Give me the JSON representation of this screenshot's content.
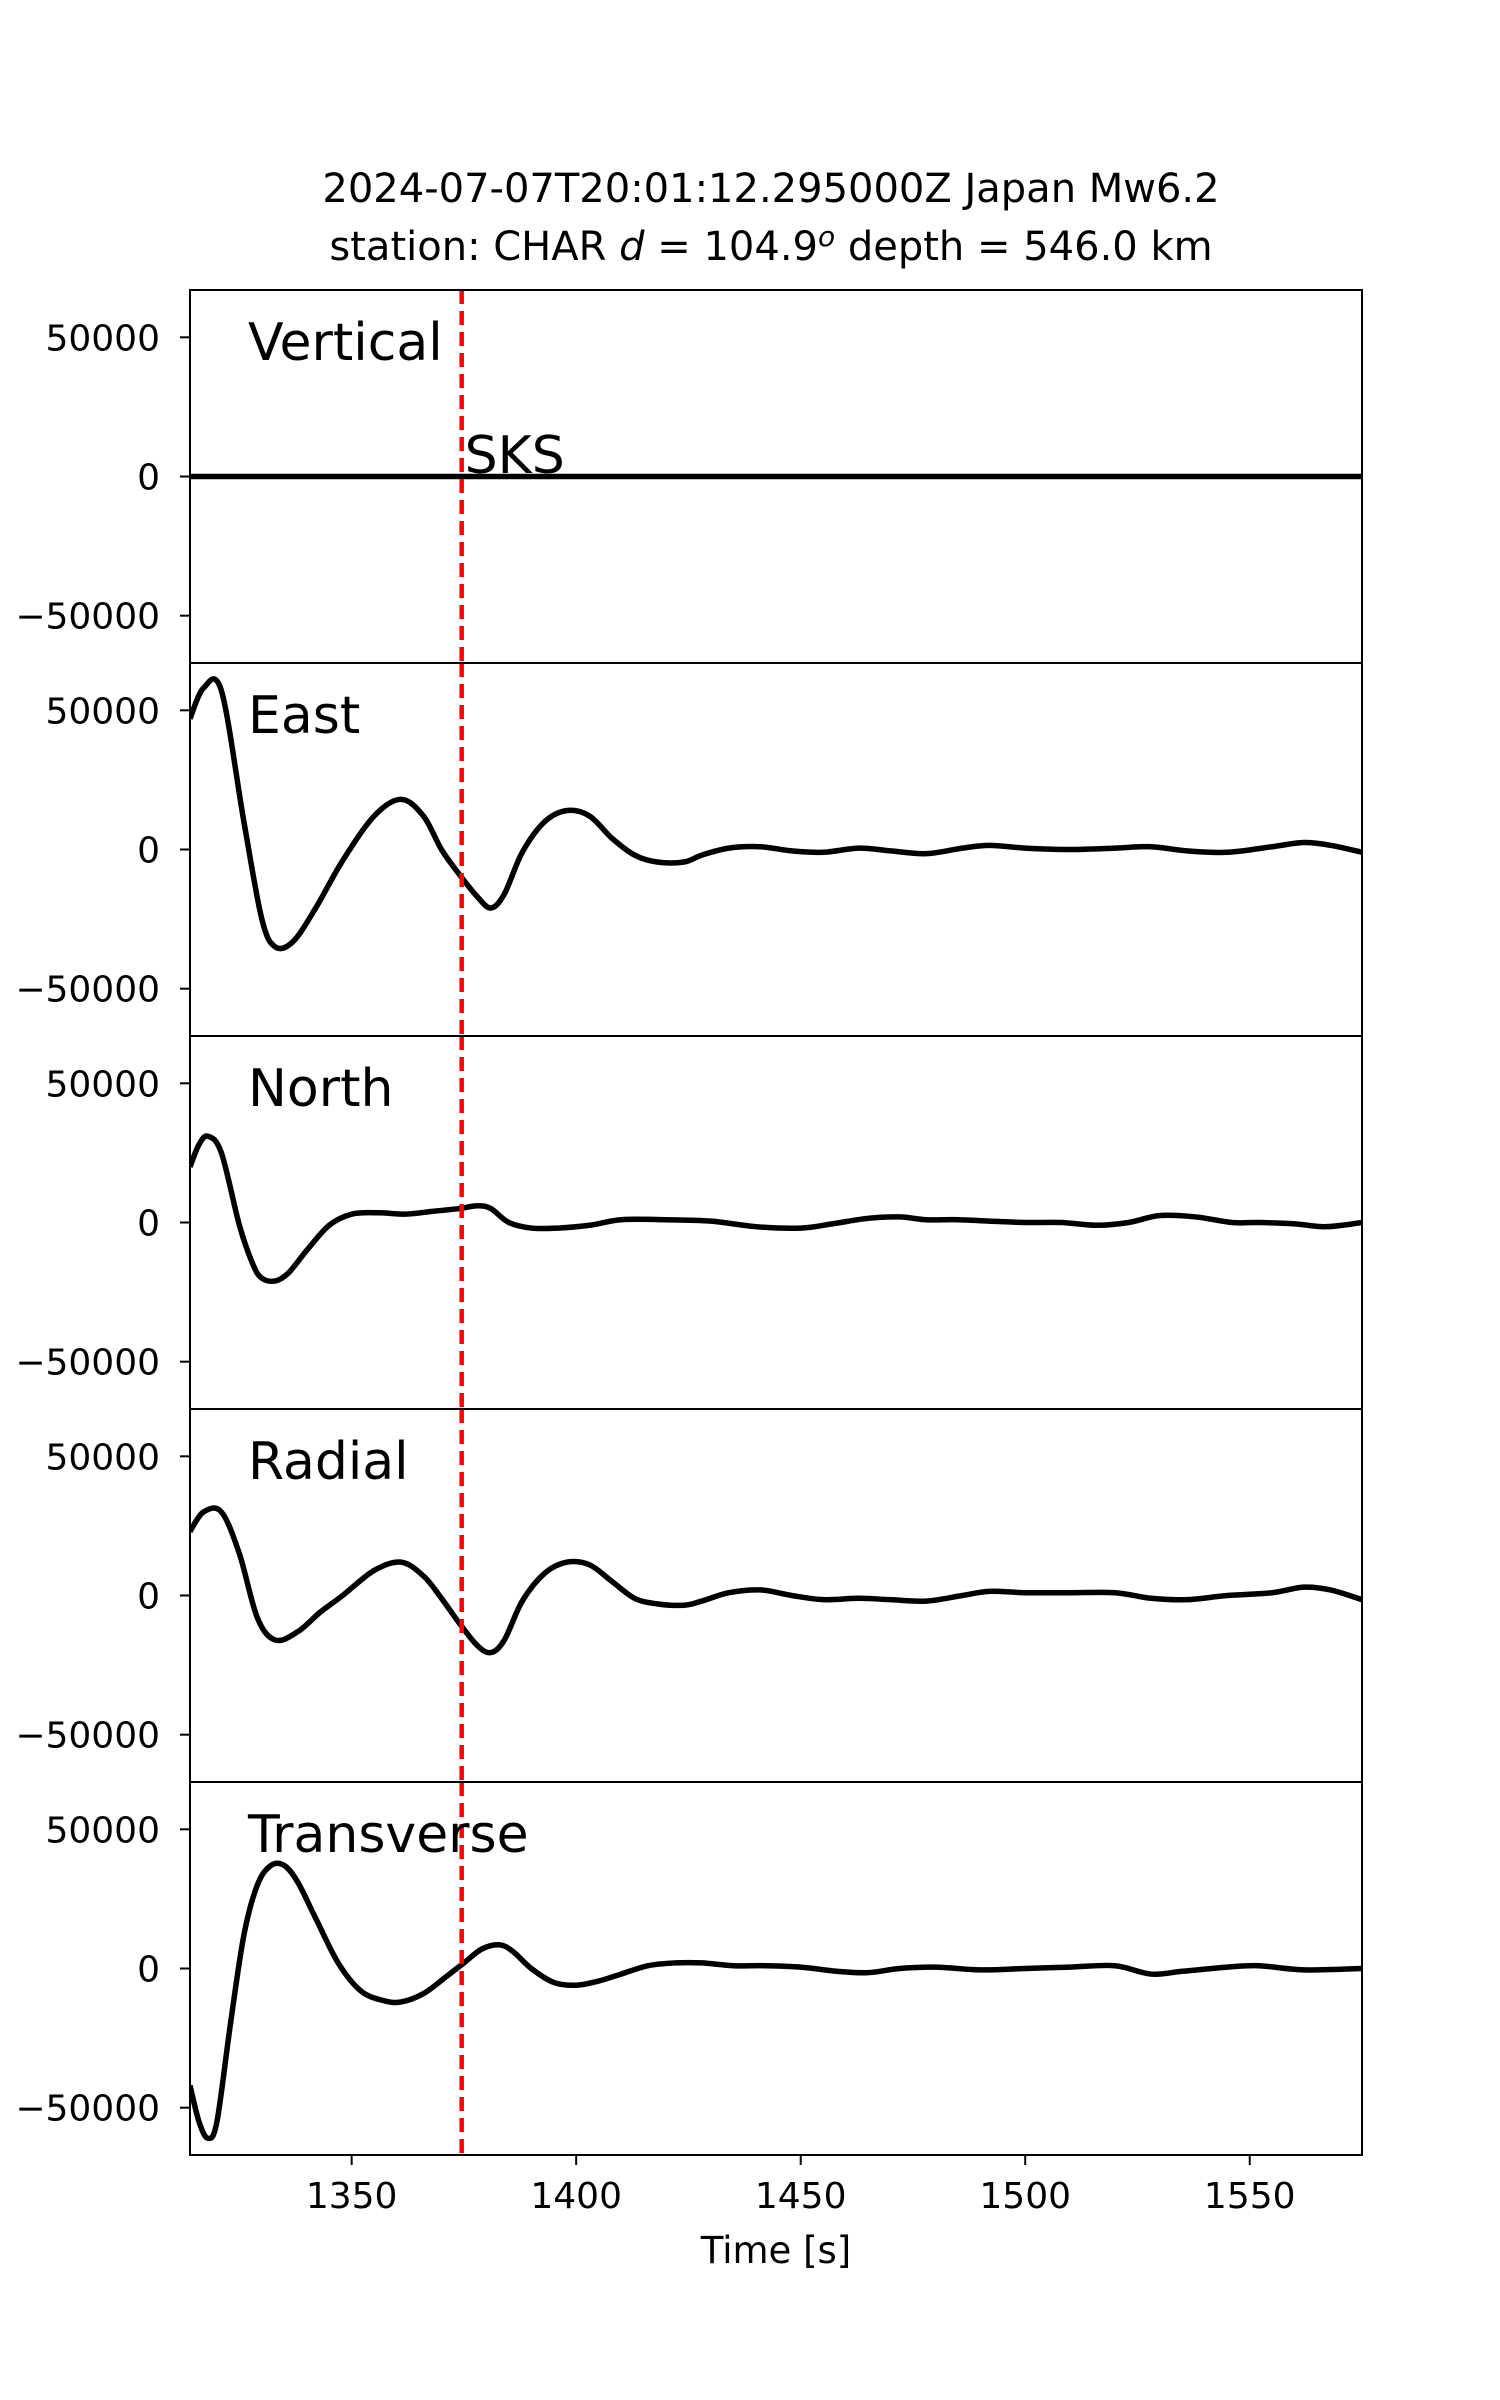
{
  "chart_data": {
    "type": "line",
    "title_line1": "2024-07-07T20:01:12.295000Z Japan Mw6.2",
    "title_line2_prefix": "station: CHAR ",
    "title_line2_d": "d",
    "title_line2_eq": " = 104.9",
    "title_line2_sup": "o",
    "title_line2_suffix": " depth = 546.0 km",
    "xlabel": "Time [s]",
    "xlim": [
      1314,
      1575
    ],
    "ylim": [
      -67000,
      67000
    ],
    "xticks": [
      1350,
      1400,
      1450,
      1500,
      1550
    ],
    "yticks": [
      50000,
      0,
      -50000
    ],
    "ytick_labels": [
      "50000",
      "0",
      "−50000"
    ],
    "grid": false,
    "line_color": "#000000",
    "phase": {
      "name": "SKS",
      "time": 1374.5,
      "color": "#ff0000",
      "style": "dashed"
    },
    "panels": [
      {
        "label": "Vertical",
        "x": [
          1314,
          1350,
          1400,
          1450,
          1500,
          1550,
          1575
        ],
        "y": [
          0,
          0,
          0,
          0,
          0,
          0,
          0
        ]
      },
      {
        "label": "East",
        "x": [
          1314,
          1317,
          1321,
          1326,
          1330,
          1333,
          1337,
          1342,
          1348,
          1355,
          1361,
          1366,
          1370,
          1374,
          1378,
          1381,
          1384,
          1388,
          1393,
          1398,
          1403,
          1408,
          1413,
          1418,
          1424,
          1428,
          1434,
          1441,
          1448,
          1455,
          1463,
          1470,
          1478,
          1486,
          1492,
          1500,
          1510,
          1520,
          1528,
          1536,
          1545,
          1555,
          1562,
          1568,
          1575
        ],
        "y": [
          47000,
          58000,
          57000,
          10000,
          -25000,
          -35000,
          -33000,
          -21000,
          -4000,
          12000,
          18000,
          12000,
          0,
          -9000,
          -17000,
          -21000,
          -16000,
          -1000,
          10000,
          14000,
          12000,
          4000,
          -2000,
          -4500,
          -4500,
          -2000,
          500,
          1000,
          -500,
          -1000,
          500,
          -500,
          -1500,
          500,
          1500,
          500,
          0,
          500,
          1000,
          -500,
          -1000,
          1000,
          2500,
          1500,
          -1000
        ]
      },
      {
        "label": "North",
        "x": [
          1314,
          1316,
          1318,
          1321,
          1325,
          1328,
          1330,
          1333,
          1336,
          1340,
          1345,
          1350,
          1356,
          1362,
          1368,
          1374,
          1378,
          1381,
          1385,
          1390,
          1396,
          1403,
          1410,
          1420,
          1430,
          1440,
          1450,
          1457,
          1465,
          1472,
          1478,
          1485,
          1492,
          1500,
          1508,
          1516,
          1523,
          1530,
          1538,
          1546,
          1552,
          1560,
          1567,
          1575
        ],
        "y": [
          20000,
          28000,
          31000,
          25000,
          -1000,
          -15000,
          -20000,
          -21000,
          -18000,
          -10000,
          -1000,
          3000,
          3500,
          3000,
          4000,
          5000,
          6000,
          5000,
          0,
          -2000,
          -2000,
          -1000,
          1000,
          1000,
          500,
          -1500,
          -2000,
          -500,
          1500,
          2000,
          1000,
          1000,
          500,
          0,
          0,
          -1000,
          0,
          2500,
          2000,
          0,
          0,
          -500,
          -1500,
          0
        ]
      },
      {
        "label": "Radial",
        "x": [
          1314,
          1317,
          1321,
          1325,
          1329,
          1333,
          1338,
          1343,
          1348,
          1355,
          1361,
          1366,
          1370,
          1374,
          1378,
          1381,
          1384,
          1388,
          1393,
          1398,
          1403,
          1408,
          1413,
          1418,
          1424,
          1428,
          1434,
          1441,
          1448,
          1455,
          1463,
          1470,
          1478,
          1486,
          1492,
          1500,
          1510,
          1520,
          1528,
          1536,
          1545,
          1555,
          1562,
          1568,
          1575
        ],
        "y": [
          23000,
          30000,
          30000,
          15000,
          -8000,
          -16000,
          -13000,
          -6000,
          0,
          9000,
          12000,
          7000,
          -1000,
          -10000,
          -18000,
          -20500,
          -16000,
          -2000,
          8000,
          12000,
          11000,
          5000,
          -1000,
          -3000,
          -3500,
          -2000,
          1000,
          2000,
          0,
          -1500,
          -1000,
          -1500,
          -2000,
          0,
          1500,
          1000,
          1000,
          1000,
          -1000,
          -1500,
          0,
          1000,
          3000,
          2000,
          -1500
        ]
      },
      {
        "label": "Transverse",
        "x": [
          1314,
          1316,
          1318,
          1320,
          1323,
          1326,
          1329,
          1332,
          1335,
          1338,
          1342,
          1347,
          1352,
          1357,
          1361,
          1366,
          1371,
          1375,
          1379,
          1383,
          1386,
          1390,
          1395,
          1400,
          1405,
          1410,
          1416,
          1422,
          1428,
          1435,
          1442,
          1450,
          1458,
          1465,
          1472,
          1480,
          1490,
          1500,
          1510,
          1520,
          1528,
          1535,
          1545,
          1552,
          1562,
          1575
        ],
        "y": [
          -42000,
          -55000,
          -61000,
          -55000,
          -20000,
          12000,
          30000,
          37000,
          37000,
          31000,
          18000,
          2000,
          -8000,
          -11500,
          -12000,
          -9000,
          -3000,
          2000,
          7000,
          8500,
          6000,
          0,
          -5000,
          -6000,
          -4500,
          -2000,
          1000,
          2000,
          2000,
          1000,
          1000,
          500,
          -1000,
          -1500,
          0,
          500,
          -500,
          0,
          500,
          1000,
          -2000,
          -1000,
          500,
          1000,
          -500,
          0
        ]
      }
    ]
  }
}
